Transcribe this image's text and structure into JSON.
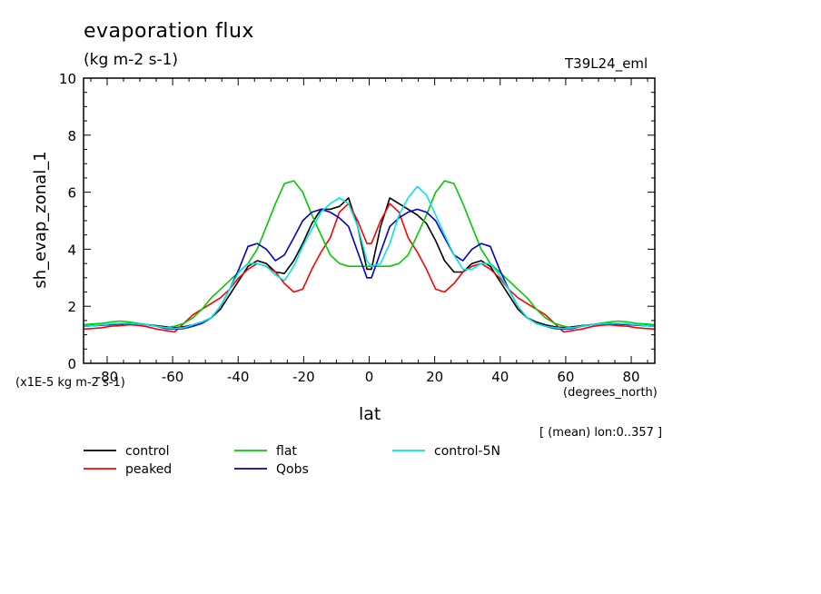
{
  "chart_data": {
    "type": "line",
    "title": "evaporation flux",
    "units_label": "(kg m-2 s-1)",
    "run_label": "T39L24_eml",
    "xlabel": "lat",
    "x_unit_label": "(degrees_north)",
    "ylabel": "sh_evap_zonal_1",
    "y_scale_label": "(x1E-5 kg m-2 s-1)",
    "footer_note": "[ (mean) lon:0..357 ]",
    "xlim": [
      -87.2,
      87.2
    ],
    "ylim": [
      0,
      10
    ],
    "x_ticks": [
      -80,
      -60,
      -40,
      -20,
      0,
      20,
      40,
      60,
      80
    ],
    "y_ticks": [
      0,
      2,
      4,
      6,
      8,
      10
    ],
    "x": [
      -87.2,
      -84.4,
      -81.6,
      -78.9,
      -76.1,
      -73.3,
      -70.5,
      -67.7,
      -64.9,
      -62.1,
      -59.4,
      -56.6,
      -53.8,
      -51.0,
      -48.2,
      -45.4,
      -42.6,
      -39.8,
      -37.0,
      -34.2,
      -31.4,
      -28.6,
      -25.9,
      -23.0,
      -20.3,
      -17.5,
      -14.7,
      -11.9,
      -9.1,
      -6.3,
      -3.5,
      -0.7,
      0.7,
      3.5,
      6.3,
      9.1,
      11.9,
      14.7,
      17.5,
      20.3,
      23.0,
      25.9,
      28.6,
      31.4,
      34.2,
      37.0,
      39.8,
      42.6,
      45.4,
      48.2,
      51.0,
      53.8,
      56.6,
      59.4,
      62.1,
      64.9,
      67.7,
      70.5,
      73.3,
      76.1,
      78.9,
      81.6,
      84.4,
      87.2
    ],
    "series": [
      {
        "name": "control",
        "color": "#000000",
        "values": [
          1.3,
          1.32,
          1.34,
          1.36,
          1.38,
          1.4,
          1.38,
          1.35,
          1.32,
          1.28,
          1.25,
          1.28,
          1.35,
          1.45,
          1.6,
          1.9,
          2.4,
          2.9,
          3.4,
          3.6,
          3.5,
          3.2,
          3.15,
          3.6,
          4.2,
          4.9,
          5.4,
          5.4,
          5.5,
          5.8,
          4.8,
          3.3,
          3.3,
          4.8,
          5.8,
          5.6,
          5.4,
          5.2,
          4.9,
          4.3,
          3.6,
          3.2,
          3.2,
          3.5,
          3.6,
          3.4,
          2.9,
          2.4,
          1.9,
          1.6,
          1.45,
          1.35,
          1.28,
          1.25,
          1.28,
          1.32,
          1.35,
          1.38,
          1.4,
          1.38,
          1.36,
          1.34,
          1.32,
          1.3
        ]
      },
      {
        "name": "peaked",
        "color": "#ff0000",
        "values": [
          1.2,
          1.22,
          1.25,
          1.3,
          1.32,
          1.35,
          1.33,
          1.28,
          1.2,
          1.15,
          1.1,
          1.4,
          1.7,
          1.9,
          2.1,
          2.3,
          2.6,
          3.0,
          3.3,
          3.5,
          3.4,
          3.2,
          2.8,
          2.5,
          2.6,
          3.3,
          3.9,
          4.4,
          5.3,
          5.6,
          5.0,
          4.2,
          4.2,
          5.0,
          5.6,
          5.3,
          4.4,
          3.9,
          3.3,
          2.6,
          2.5,
          2.8,
          3.2,
          3.4,
          3.5,
          3.3,
          3.0,
          2.6,
          2.3,
          2.1,
          1.9,
          1.7,
          1.4,
          1.1,
          1.15,
          1.2,
          1.28,
          1.33,
          1.35,
          1.32,
          1.3,
          1.25,
          1.22,
          1.2
        ]
      },
      {
        "name": "flat",
        "color": "#00cc00",
        "values": [
          1.35,
          1.38,
          1.4,
          1.45,
          1.48,
          1.45,
          1.4,
          1.35,
          1.3,
          1.25,
          1.3,
          1.4,
          1.6,
          1.9,
          2.3,
          2.6,
          2.9,
          3.2,
          3.5,
          4.0,
          4.8,
          5.6,
          6.3,
          6.4,
          6.0,
          5.2,
          4.5,
          3.8,
          3.5,
          3.4,
          3.4,
          3.4,
          3.4,
          3.4,
          3.4,
          3.5,
          3.8,
          4.5,
          5.2,
          6.0,
          6.4,
          6.3,
          5.6,
          4.8,
          4.0,
          3.5,
          3.2,
          2.9,
          2.6,
          2.3,
          1.9,
          1.6,
          1.4,
          1.3,
          1.25,
          1.3,
          1.35,
          1.4,
          1.45,
          1.48,
          1.45,
          1.4,
          1.38,
          1.35
        ]
      },
      {
        "name": "Qobs",
        "color": "#0000cc",
        "values": [
          1.3,
          1.32,
          1.34,
          1.36,
          1.38,
          1.4,
          1.38,
          1.35,
          1.3,
          1.22,
          1.2,
          1.22,
          1.3,
          1.4,
          1.6,
          2.0,
          2.6,
          3.3,
          4.1,
          4.2,
          4.0,
          3.6,
          3.8,
          4.4,
          5.0,
          5.3,
          5.4,
          5.3,
          5.1,
          4.8,
          3.9,
          3.0,
          3.0,
          3.9,
          4.8,
          5.1,
          5.3,
          5.4,
          5.3,
          5.0,
          4.4,
          3.8,
          3.6,
          4.0,
          4.2,
          4.1,
          3.3,
          2.6,
          2.0,
          1.6,
          1.4,
          1.3,
          1.22,
          1.2,
          1.22,
          1.3,
          1.35,
          1.38,
          1.4,
          1.38,
          1.36,
          1.34,
          1.32,
          1.3
        ]
      },
      {
        "name": "control-5N",
        "color": "#00e5e5",
        "values": [
          1.3,
          1.32,
          1.35,
          1.38,
          1.4,
          1.4,
          1.38,
          1.35,
          1.3,
          1.25,
          1.22,
          1.25,
          1.35,
          1.45,
          1.6,
          2.0,
          2.6,
          3.2,
          3.5,
          3.5,
          3.4,
          3.1,
          2.9,
          3.4,
          4.1,
          4.7,
          5.3,
          5.6,
          5.8,
          5.6,
          4.8,
          3.6,
          3.4,
          3.5,
          4.2,
          5.2,
          5.8,
          6.2,
          5.9,
          5.2,
          4.5,
          3.8,
          3.3,
          3.3,
          3.5,
          3.5,
          3.1,
          2.6,
          2.0,
          1.6,
          1.4,
          1.3,
          1.25,
          1.22,
          1.25,
          1.3,
          1.35,
          1.38,
          1.4,
          1.4,
          1.38,
          1.35,
          1.32,
          1.3
        ]
      }
    ],
    "legend_placement": "bottom",
    "grid": false
  }
}
